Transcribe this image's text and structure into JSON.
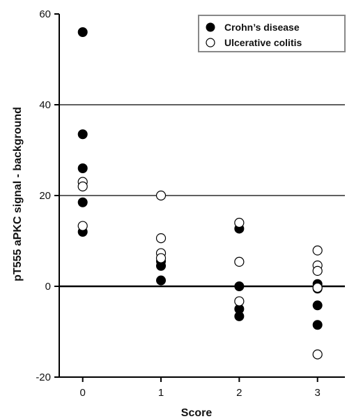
{
  "chart_data": {
    "type": "scatter",
    "xlabel": "Score",
    "ylabel": "pT555 aPKC signal - background",
    "x_ticks": [
      "0",
      "1",
      "2",
      "3"
    ],
    "y_ticks": [
      "-20",
      "0",
      "20",
      "40",
      "60"
    ],
    "xlim": [
      -0.3,
      3.35
    ],
    "ylim": [
      -20,
      60
    ],
    "grid": {
      "horizontal_lines_at": [
        0,
        20,
        40
      ],
      "zero_line_bold": true
    },
    "legend_position": "top-right",
    "series": [
      {
        "name": "Crohn’s disease",
        "marker": "filled",
        "color": "#000000",
        "x": [
          0,
          0,
          0,
          0,
          0,
          1,
          1,
          1,
          2,
          2,
          2,
          2,
          3,
          3,
          3,
          3
        ],
        "y": [
          56,
          33.5,
          26,
          18.5,
          12,
          5.5,
          4.5,
          1.3,
          12.7,
          0,
          -5,
          -6.6,
          0.5,
          -0.5,
          -4.2,
          -8.5
        ]
      },
      {
        "name": "Ulcerative colitis",
        "marker": "open",
        "color": "#000000",
        "x": [
          0,
          0,
          0,
          1,
          1,
          1,
          1,
          2,
          2,
          2,
          3,
          3,
          3,
          3,
          3
        ],
        "y": [
          23,
          22,
          13.3,
          20,
          10.6,
          7.3,
          6.2,
          14,
          5.4,
          -3.3,
          7.9,
          4.6,
          3.4,
          -0.3,
          -15
        ]
      }
    ]
  }
}
